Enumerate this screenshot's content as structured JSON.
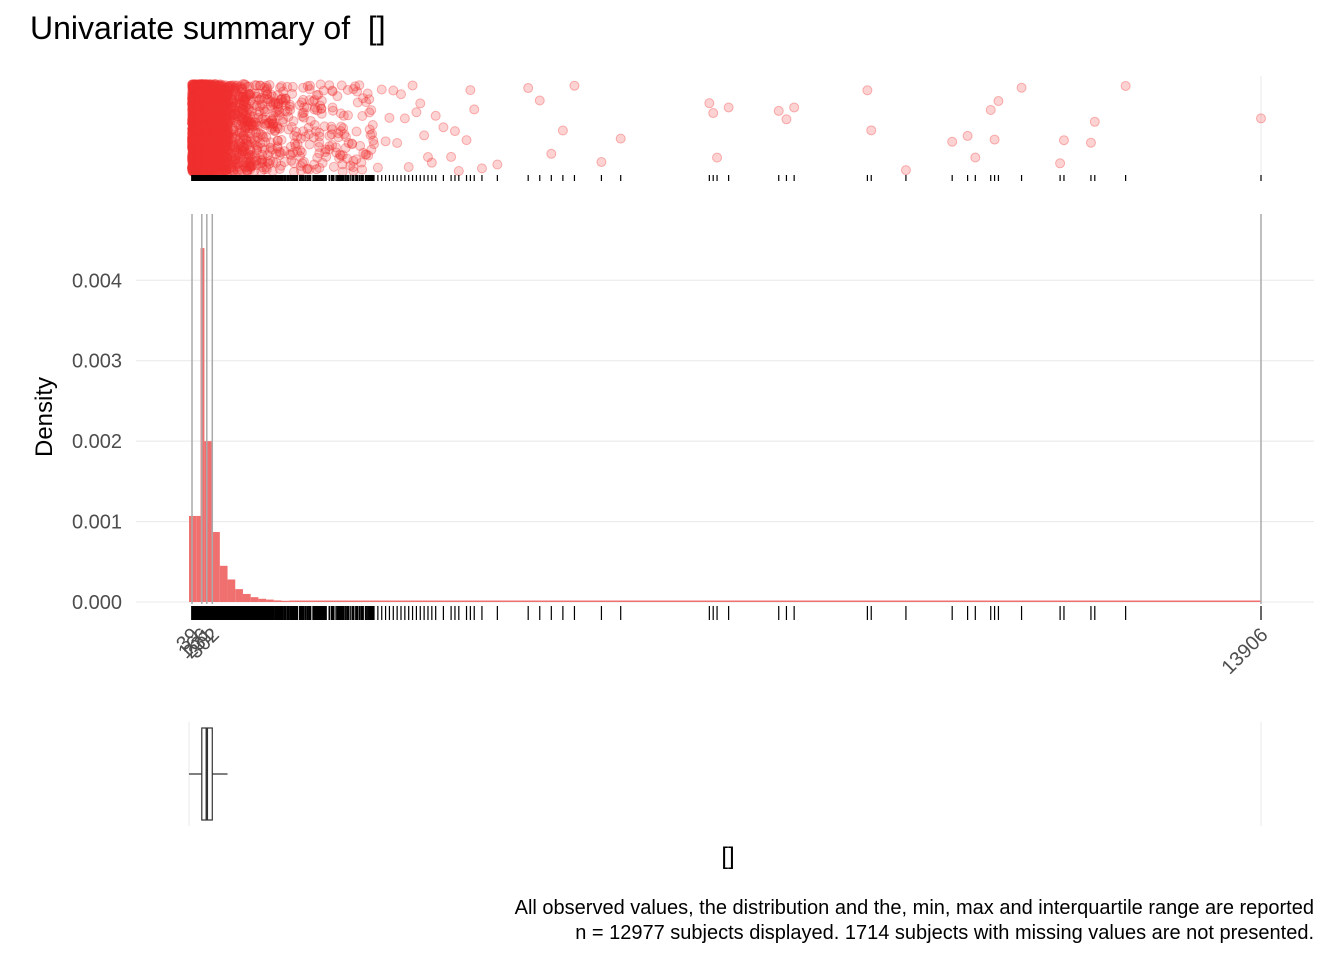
{
  "title": "Univariate summary of  []",
  "caption": {
    "line1": "All observed values, the distribution and the, min, max and interquartile range are reported",
    "line2": "n = 12977 subjects displayed. 1714 subjects with missing values are not presented."
  },
  "colors": {
    "accent": "#f03030",
    "hist_fill": "#f07070",
    "grid": "#e8e8e8",
    "marker_line": "#aaaaaa",
    "ink": "#000000"
  },
  "chart_data": {
    "type": "histogram",
    "xlabel": "[]",
    "ylabel": "Density",
    "x_range": [
      0,
      13906
    ],
    "y_range": [
      0,
      0.0046
    ],
    "y_ticks": [
      0,
      0.001,
      0.002,
      0.003,
      0.004
    ],
    "y_tick_labels": [
      "0.000",
      "0.001",
      "0.002",
      "0.003",
      "0.004"
    ],
    "x_tick_values": [
      39,
      166,
      231,
      302,
      13906
    ],
    "x_tick_labels": [
      "39",
      "166",
      "231",
      "302",
      "13906"
    ],
    "summary_lines": [
      39,
      166,
      231,
      302,
      13906
    ],
    "bin_width": 100,
    "bins": [
      {
        "x0": 0,
        "density": 0.00107
      },
      {
        "x0": 100,
        "density": 0.00107
      },
      {
        "x0": 150,
        "density": 0.0044
      },
      {
        "x0": 200,
        "density": 0.002
      },
      {
        "x0": 300,
        "density": 0.00087
      },
      {
        "x0": 400,
        "density": 0.00045
      },
      {
        "x0": 500,
        "density": 0.00028
      },
      {
        "x0": 600,
        "density": 0.00016
      },
      {
        "x0": 700,
        "density": 0.0001
      },
      {
        "x0": 800,
        "density": 6e-05
      },
      {
        "x0": 900,
        "density": 4e-05
      },
      {
        "x0": 1000,
        "density": 3e-05
      },
      {
        "x0": 1100,
        "density": 2e-05
      },
      {
        "x0": 1200,
        "density": 1.5e-05
      }
    ],
    "sparse_values": [
      2400,
      2450,
      2500,
      2550,
      2600,
      2650,
      2700,
      2750,
      2800,
      2850,
      2900,
      2950,
      3000,
      3050,
      3100,
      3150,
      3200,
      3300,
      3400,
      3450,
      3500,
      3600,
      3650,
      3700,
      3800,
      4000,
      4400,
      4550,
      4700,
      4850,
      5000,
      5350,
      5600,
      6750,
      6800,
      6850,
      7000,
      7650,
      7750,
      7850,
      8800,
      8850,
      9300,
      9900,
      10100,
      10200,
      10400,
      10450,
      10500,
      10800,
      11300,
      11350,
      11700,
      11750,
      12150,
      13906
    ],
    "boxplot": {
      "min": 39,
      "q1": 166,
      "median": 231,
      "q3": 302,
      "whisker_end": 500
    }
  }
}
